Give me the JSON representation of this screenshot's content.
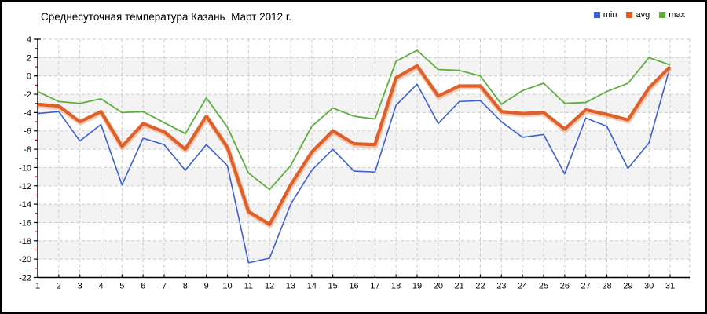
{
  "chart_data": {
    "type": "line",
    "title": "Среднесуточная температура Казань  Март 2012 г.",
    "x": [
      1,
      2,
      3,
      4,
      5,
      6,
      7,
      8,
      9,
      10,
      11,
      12,
      13,
      14,
      15,
      16,
      17,
      18,
      19,
      20,
      21,
      22,
      23,
      24,
      25,
      26,
      27,
      28,
      29,
      30,
      31
    ],
    "y_ticks": [
      4,
      2,
      0,
      -2,
      -4,
      -6,
      -8,
      -10,
      -12,
      -14,
      -16,
      -18,
      -20,
      -22
    ],
    "ylim": [
      -22,
      4
    ],
    "ytick_step": 2,
    "grid": true,
    "legend_position": "top-right",
    "series": [
      {
        "name": "min",
        "color": "#3d5fd0",
        "values": [
          -4.1,
          -3.9,
          -7.1,
          -5.3,
          -11.9,
          -6.8,
          -7.5,
          -10.3,
          -7.5,
          -9.8,
          -20.4,
          -19.9,
          -14.0,
          -10.3,
          -8.0,
          -10.4,
          -10.5,
          -3.2,
          -0.9,
          -5.2,
          -2.8,
          -2.7,
          -5.0,
          -6.7,
          -6.4,
          -10.7,
          -4.6,
          -5.5,
          -10.1,
          -7.3,
          1.0
        ]
      },
      {
        "name": "avg",
        "color": "#e0602a",
        "values": [
          -3.1,
          -3.3,
          -5.0,
          -3.9,
          -7.7,
          -5.2,
          -6.1,
          -8.0,
          -4.4,
          -7.8,
          -14.8,
          -16.2,
          -11.9,
          -8.3,
          -6.0,
          -7.4,
          -7.5,
          -0.2,
          1.1,
          -2.2,
          -1.1,
          -1.1,
          -3.9,
          -4.1,
          -4.0,
          -5.8,
          -3.7,
          -4.2,
          -4.8,
          -1.3,
          1.0
        ]
      },
      {
        "name": "max",
        "color": "#5fae3f",
        "values": [
          -1.7,
          -2.8,
          -3.0,
          -2.5,
          -4.0,
          -3.9,
          -5.1,
          -6.3,
          -2.4,
          -5.6,
          -10.6,
          -12.4,
          -9.8,
          -5.5,
          -3.5,
          -4.4,
          -4.7,
          1.6,
          2.8,
          0.7,
          0.6,
          0.0,
          -3.1,
          -1.6,
          -0.8,
          -3.0,
          -2.9,
          -1.7,
          -0.8,
          2.0,
          1.2
        ]
      }
    ],
    "style": {
      "band_fill": "#f3f3f3",
      "grid_color": "#cdcdcd",
      "minor_tick_color": "#cc0000",
      "avg_halo_color": "#f2a47c"
    }
  }
}
